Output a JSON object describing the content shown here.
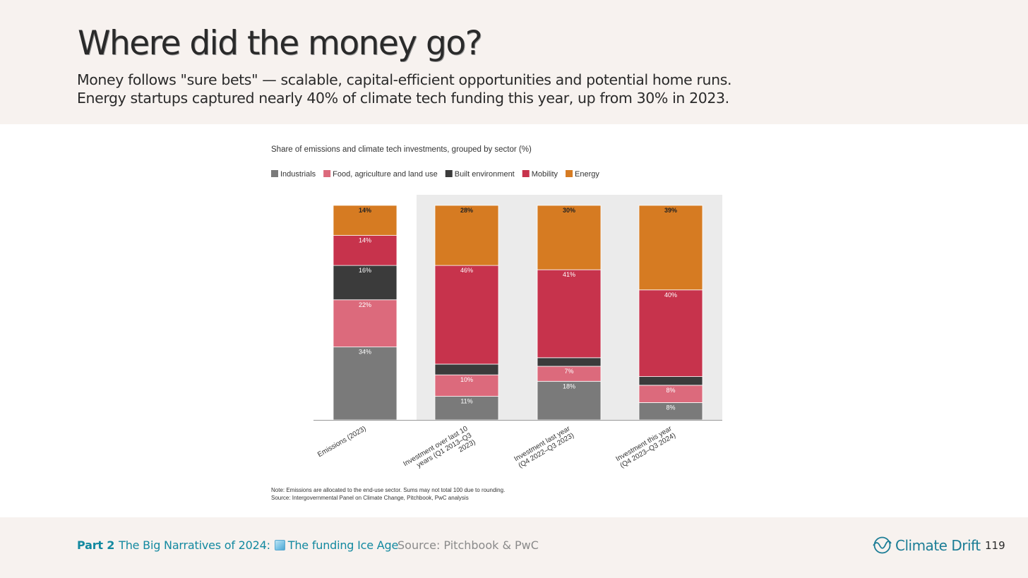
{
  "header": {
    "title": "Where did the money go?",
    "subtitle_line1": "Money follows \"sure bets\" — scalable, capital-efficient opportunities and potential home runs.",
    "subtitle_line2": "Energy startups captured nearly 40% of climate tech funding this year, up from 30% in 2023."
  },
  "chart_data": {
    "type": "bar",
    "stacked": true,
    "title": "Share of emissions and climate tech investments, grouped by sector (%)",
    "categories": [
      "Emissions (2023)",
      "Investment over last 10 years (Q1 2013–Q3 2023)",
      "Investment last year (Q4 2022–Q3 2023)",
      "Investment this year (Q4 2023–Q3 2024)"
    ],
    "category_lines": [
      [
        "Emissions (2023)"
      ],
      [
        "Investment over last 10",
        "years (Q1 2013–Q3",
        "2023)"
      ],
      [
        "Investment last year",
        "(Q4 2022–Q3 2023)"
      ],
      [
        "Investment this year",
        "(Q4 2023–Q3 2024)"
      ]
    ],
    "series": [
      {
        "name": "Industrials",
        "color": "#7a7a7a",
        "values": [
          34,
          11,
          18,
          8
        ],
        "labels": [
          "34%",
          "11%",
          "18%",
          "8%"
        ]
      },
      {
        "name": "Food, agriculture and land use",
        "color": "#dc6a7c",
        "values": [
          22,
          10,
          7,
          8
        ],
        "labels": [
          "22%",
          "10%",
          "7%",
          "8%"
        ]
      },
      {
        "name": "Built environment",
        "color": "#3b3b3b",
        "values": [
          16,
          5,
          4,
          4
        ],
        "labels": [
          "16%",
          "",
          "",
          ""
        ]
      },
      {
        "name": "Mobility",
        "color": "#c7334c",
        "values": [
          14,
          46,
          41,
          40
        ],
        "labels": [
          "14%",
          "46%",
          "41%",
          "40%"
        ]
      },
      {
        "name": "Energy",
        "color": "#d67b22",
        "values": [
          14,
          28,
          30,
          39
        ],
        "labels": [
          "14%",
          "28%",
          "30%",
          "39%"
        ]
      }
    ],
    "ylim": [
      0,
      100
    ],
    "highlight_categories": [
      1,
      2,
      3
    ],
    "legend_position": "top-left",
    "grid": false,
    "note": "Note: Emissions are allocated to the end-use sector. Sums may not total 100 due to rounding.",
    "source": "Source: Intergovernmental Panel on Climate Change, Pitchbook, PwC analysis"
  },
  "footer": {
    "part": "Part 2",
    "section_prefix": "The Big Narratives of 2024:",
    "section_icon": "ice-cube-icon",
    "section_suffix": "The funding Ice Age",
    "source": "Source: Pitchbook & PwC",
    "brand": "Climate Drift",
    "brand_icon": "climate-drift-logo-icon",
    "page_number": "119"
  }
}
